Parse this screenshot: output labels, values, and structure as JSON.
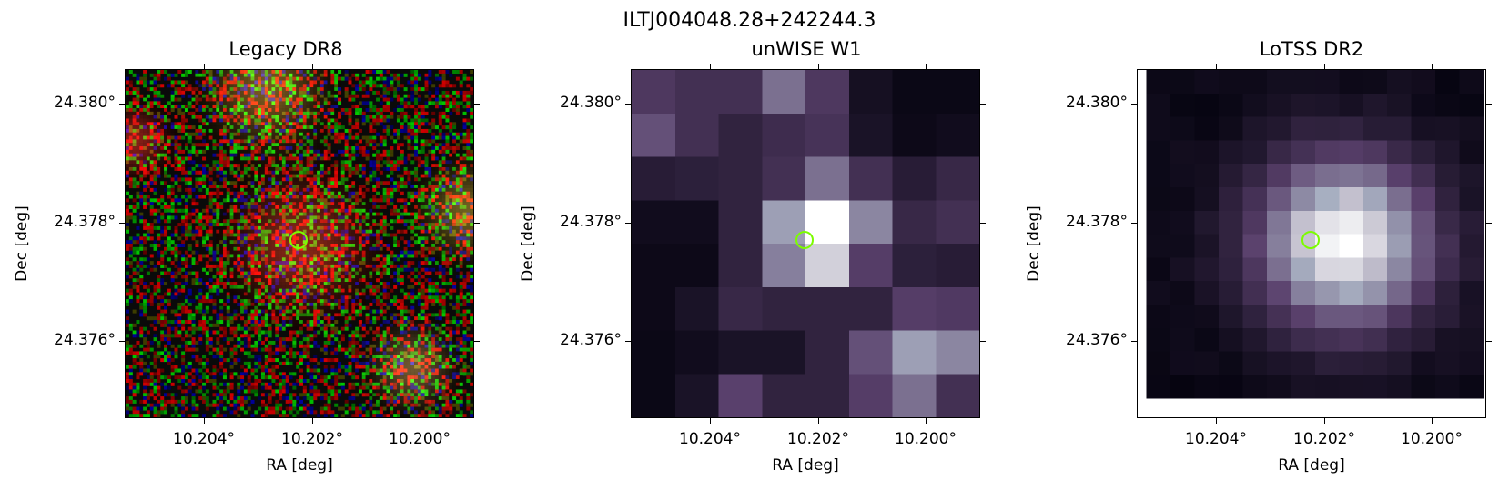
{
  "figure": {
    "title": "ILTJ004048.28+242244.3",
    "marker_color": "#7CFC00"
  },
  "panels": [
    {
      "title": "Legacy DR8",
      "xlabel": "RA [deg]",
      "ylabel": "Dec [deg]",
      "xticks": [
        "10.204°",
        "10.202°",
        "10.200°"
      ],
      "yticks": [
        "24.380°",
        "24.378°",
        "24.376°"
      ],
      "colormap": "rgb-noise"
    },
    {
      "title": "unWISE W1",
      "xlabel": "RA [deg]",
      "ylabel": "Dec [deg]",
      "xticks": [
        "10.204°",
        "10.202°",
        "10.200°"
      ],
      "yticks": [
        "24.380°",
        "24.378°",
        "24.376°"
      ],
      "colormap": "bone"
    },
    {
      "title": "LoTSS DR2",
      "xlabel": "RA [deg]",
      "ylabel": "Dec [deg]",
      "xticks": [
        "10.204°",
        "10.202°",
        "10.200°"
      ],
      "yticks": [
        "24.380°",
        "24.378°",
        "24.376°"
      ],
      "colormap": "bone"
    }
  ]
}
